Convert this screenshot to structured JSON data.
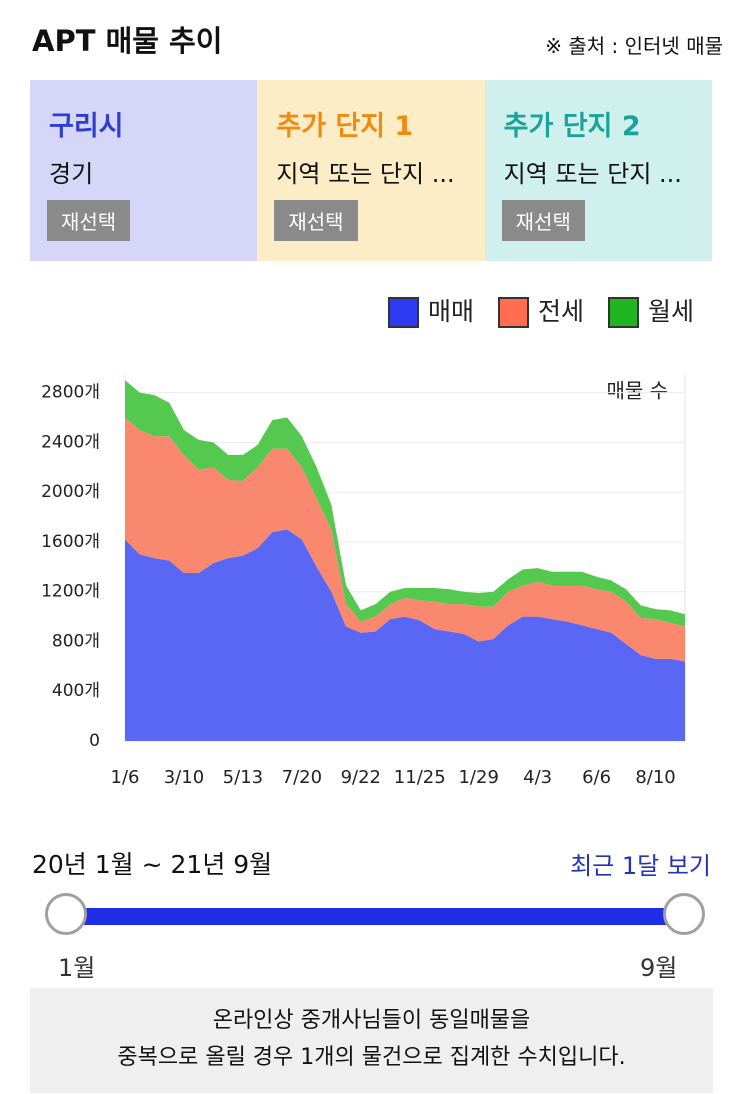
{
  "header": {
    "title": "APT 매물 추이",
    "source": "※ 출처 : 인터넷 매물"
  },
  "cards": [
    {
      "title": "구리시",
      "subtitle": "경기",
      "button": "재선택"
    },
    {
      "title": "추가 단지 1",
      "subtitle": "지역 또는 단지 ...",
      "button": "재선택"
    },
    {
      "title": "추가 단지 2",
      "subtitle": "지역 또는 단지 ...",
      "button": "재선택"
    }
  ],
  "chart_data": {
    "type": "stacked-area",
    "y_label": "매물 수",
    "categories": [
      "1/6",
      null,
      null,
      null,
      "3/10",
      null,
      null,
      null,
      "5/13",
      null,
      null,
      null,
      "7/20",
      null,
      null,
      null,
      "9/22",
      null,
      null,
      null,
      "11/25",
      null,
      null,
      null,
      "1/29",
      null,
      null,
      null,
      "4/3",
      null,
      null,
      null,
      "6/6",
      null,
      null,
      null,
      "8/10",
      null,
      null
    ],
    "series": [
      {
        "name": "매매",
        "color": "#5a66f4",
        "legend_color": "#2d3cf2",
        "values": [
          1620,
          1500,
          1470,
          1450,
          1350,
          1350,
          1430,
          1470,
          1490,
          1550,
          1680,
          1700,
          1620,
          1400,
          1200,
          920,
          870,
          880,
          980,
          1000,
          970,
          900,
          880,
          860,
          800,
          820,
          930,
          1000,
          1000,
          980,
          960,
          930,
          900,
          870,
          780,
          690,
          660,
          660,
          640
        ]
      },
      {
        "name": "전세",
        "color": "#f9886f",
        "legend_color": "#ff6e50",
        "values": [
          980,
          1000,
          980,
          1000,
          950,
          830,
          770,
          630,
          600,
          650,
          670,
          650,
          580,
          550,
          500,
          180,
          90,
          120,
          120,
          150,
          160,
          220,
          220,
          240,
          280,
          260,
          270,
          250,
          280,
          270,
          290,
          320,
          320,
          330,
          340,
          300,
          320,
          290,
          280
        ]
      },
      {
        "name": "월세",
        "color": "#55c94f",
        "legend_color": "#22b522",
        "values": [
          300,
          300,
          330,
          270,
          200,
          240,
          200,
          200,
          210,
          180,
          230,
          250,
          250,
          250,
          200,
          150,
          90,
          100,
          100,
          80,
          100,
          110,
          120,
          100,
          110,
          120,
          100,
          130,
          110,
          110,
          110,
          110,
          100,
          90,
          100,
          100,
          80,
          100,
          100
        ]
      }
    ],
    "ylim": [
      0,
      2950
    ],
    "yticks": [
      0,
      {
        "value": 400,
        "label": "400개"
      },
      {
        "value": 800,
        "label": "800개"
      },
      {
        "value": 1200,
        "label": "1200개"
      },
      {
        "value": 1600,
        "label": "1600개"
      },
      {
        "value": 2000,
        "label": "2000개"
      },
      {
        "value": 2400,
        "label": "2400개"
      },
      {
        "value": 2800,
        "label": "2800개"
      }
    ],
    "grid": true,
    "legend": "top-right"
  },
  "range": {
    "period": "20년 1월 ~ 21년 9월",
    "recent_link": "최근 1달 보기",
    "start_label": "1월",
    "end_label": "9월"
  },
  "note": {
    "lines": [
      "온라인상 중개사님들이 동일매물을",
      "중복으로 올릴 경우 1개의 물건으로 집계한 수치입니다."
    ]
  }
}
